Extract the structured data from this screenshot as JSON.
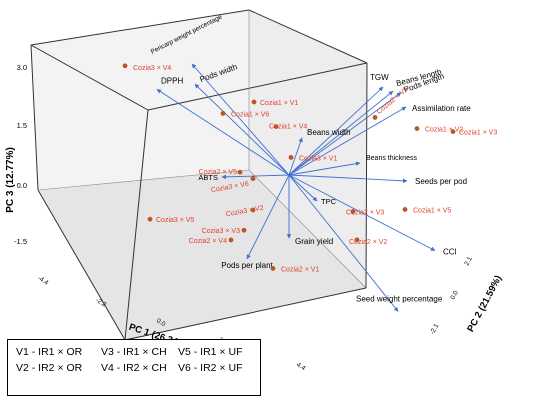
{
  "chart_data": {
    "type": "3d-biplot",
    "title": "",
    "axes": {
      "x": {
        "label": "PC 1 (26.34%)",
        "ticks": [
          "-4.4",
          "-2.2",
          "0.0",
          "2.2",
          "4.4"
        ]
      },
      "y": {
        "label": "PC 2 (21.59%)",
        "ticks": [
          "-2.1",
          "0.0",
          "2.1"
        ]
      },
      "z": {
        "label": "PC 3 (12.77%)",
        "ticks": [
          "-1.5",
          "0.0",
          "1.5",
          "3.0"
        ],
        "range": [
          -2.5,
          3.4
        ]
      }
    },
    "grid": false,
    "loadings_color": "#3f6fd1",
    "scores_color": "#e0422c",
    "variables": [
      {
        "name": "DPPH",
        "z": 1.85
      },
      {
        "name": "Pericarp weight percentage",
        "z": 3.0
      },
      {
        "name": "Pods width",
        "z": 2.55
      },
      {
        "name": "TGW",
        "z": 2.25
      },
      {
        "name": "Beans length",
        "z": 2.05
      },
      {
        "name": "Pods length",
        "z": 2.15
      },
      {
        "name": "Assimilation rate",
        "z": 1.75
      },
      {
        "name": "Beans width",
        "z": 0.95
      },
      {
        "name": "Beans thickness",
        "z": 0.25
      },
      {
        "name": "Seeds per pod",
        "z": 0.0
      },
      {
        "name": "ABTS",
        "z": 0.25
      },
      {
        "name": "TPC",
        "z": -0.75
      },
      {
        "name": "Pods per plant",
        "z": -1.55
      },
      {
        "name": "Grain yield",
        "z": -1.45
      },
      {
        "name": "CCI",
        "z": -1.85
      },
      {
        "name": "Seed weight percentage",
        "z": -2.4
      }
    ],
    "observations": [
      {
        "name": "Cozia3 × V4",
        "z": 3.2
      },
      {
        "name": "Cozia1 × V1",
        "z": 2.0
      },
      {
        "name": "Cozia1 × V6",
        "z": 1.6
      },
      {
        "name": "Cozia1 × V4",
        "z": 1.4
      },
      {
        "name": "Cozia2 × V6",
        "z": 1.6
      },
      {
        "name": "Cozia1 × V3",
        "z": 1.15
      },
      {
        "name": "Cozia1 × V2",
        "z": 0.65
      },
      {
        "name": "Cozia3 × V1",
        "z": 0.35
      },
      {
        "name": "Cozia2 × V5",
        "z": 0.3
      },
      {
        "name": "Cozia3 × V6",
        "z": 0.15
      },
      {
        "name": "Cozia1 × V5",
        "z": -0.4
      },
      {
        "name": "Cozia3 × V2",
        "z": -0.75
      },
      {
        "name": "Cozia2 × V3",
        "z": -0.9
      },
      {
        "name": "Cozia3 × V5",
        "z": -0.95
      },
      {
        "name": "Cozia3 × V3",
        "z": -1.2
      },
      {
        "name": "Cozia2 × V4",
        "z": -1.5
      },
      {
        "name": "Cozia2 × V2",
        "z": -1.55
      },
      {
        "name": "Cozia2 × V1",
        "z": -2.15
      }
    ],
    "legend": {
      "position": "bottom-left",
      "entries": [
        "V1 - IR1 × OR",
        "V2 - IR2 × OR",
        "V3 - IR1 × CH",
        "V4 - IR2 × CH",
        "V5 - IR1 × UF",
        "V6 - IR2 × UF"
      ]
    }
  }
}
